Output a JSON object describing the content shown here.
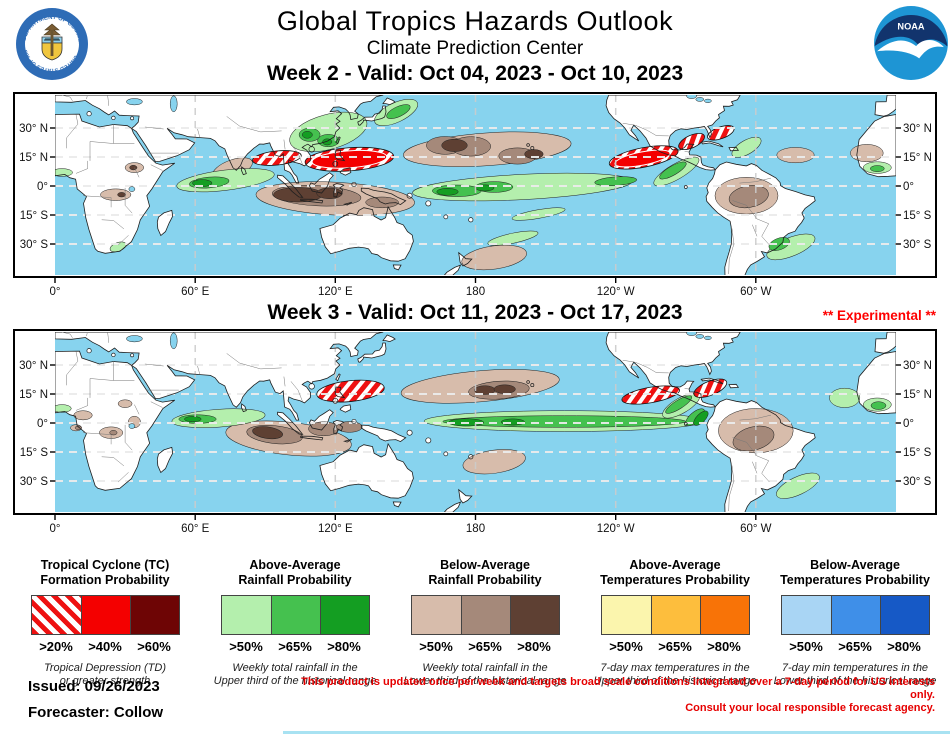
{
  "header": {
    "title": "Global Tropics Hazards Outlook",
    "subtitle": "Climate Prediction Center",
    "noaa_logo_text": "NOAA",
    "doc_seal_top_text": "DEPARTMENT OF COMMERCE",
    "doc_seal_bottom_text": "UNITED STATES OF AMERICA"
  },
  "maps": [
    {
      "id": "week2",
      "heading": "Week 2 - Valid: Oct 04, 2023 - Oct 10, 2023",
      "experimental": "",
      "lat_labels": [
        "30° N",
        "15° N",
        "0°",
        "15° S",
        "30° S"
      ],
      "lon_labels": [
        "0°",
        "60° E",
        "120° E",
        "180",
        "120° W",
        "60° W"
      ],
      "hazards": [
        {
          "type": "TC formation >40%",
          "area": "Western North Pacific / Philippine Sea"
        },
        {
          "type": "TC formation >20%",
          "area": "Bay of Bengal across Indochina"
        },
        {
          "type": "TC formation >40%",
          "area": "Eastern Pacific south of Mexico"
        },
        {
          "type": "TC formation >20%",
          "area": "Gulf of Mexico / NW Caribbean"
        },
        {
          "type": "TC formation >20%",
          "area": "Atlantic near Florida and Bahamas"
        },
        {
          "type": "Above-average rainfall",
          "area": "SE Asia to Japan; equatorial Indian Ocean; equatorial Pacific; Central America Pacific coast; SE Brazil"
        },
        {
          "type": "Below-average rainfall",
          "area": "Maritime Continent; central North Pacific; Amazon basin; tropical Atlantic; SE Pacific"
        }
      ]
    },
    {
      "id": "week3",
      "heading": "Week 3 - Valid: Oct 11, 2023 - Oct 17, 2023",
      "experimental": "** Experimental **",
      "lat_labels": [
        "30° N",
        "15° N",
        "0°",
        "15° S",
        "30° S"
      ],
      "lon_labels": [
        "0°",
        "60° E",
        "120° E",
        "180",
        "120° W",
        "60° W"
      ],
      "hazards": [
        {
          "type": "TC formation >20%",
          "area": "Philippine Sea / western North Pacific"
        },
        {
          "type": "TC formation >20%",
          "area": "Eastern Pacific south of Mexico"
        },
        {
          "type": "TC formation >20%",
          "area": "Western Caribbean / Gulf of Mexico"
        },
        {
          "type": "Above-average rainfall",
          "area": "Equatorial Indian Ocean; equatorial Pacific to Colombia; SE Brazil; West Africa"
        },
        {
          "type": "Below-average rainfall",
          "area": "Maritime Continent; central North Pacific; Amazon basin; SE Pacific; central Africa"
        }
      ]
    }
  ],
  "legends": [
    {
      "title1": "Tropical Cyclone (TC)",
      "title2": "Formation Probability",
      "labels": [
        ">20%",
        ">40%",
        ">60%"
      ],
      "desc1": "Tropical Depression (TD)",
      "desc2": "or greater strength",
      "swatches": [
        {
          "style": "hatch",
          "color": "#ee1111"
        },
        {
          "style": "solid",
          "color": "#f40000"
        },
        {
          "style": "solid",
          "color": "#6e0505"
        }
      ]
    },
    {
      "title1": "Above-Average",
      "title2": "Rainfall Probability",
      "labels": [
        ">50%",
        ">65%",
        ">80%"
      ],
      "desc1": "Weekly total rainfall in the",
      "desc2": "Upper third of the historical range",
      "swatches": [
        {
          "style": "solid",
          "color": "#b4efad"
        },
        {
          "style": "solid",
          "color": "#45c14f"
        },
        {
          "style": "solid",
          "color": "#149e22"
        }
      ]
    },
    {
      "title1": "Below-Average",
      "title2": "Rainfall Probability",
      "labels": [
        ">50%",
        ">65%",
        ">80%"
      ],
      "desc1": "Weekly total rainfall in the",
      "desc2": "Lower third of the historical range",
      "swatches": [
        {
          "style": "solid",
          "color": "#d7bcab"
        },
        {
          "style": "solid",
          "color": "#a5897a"
        },
        {
          "style": "solid",
          "color": "#5e4033"
        }
      ]
    },
    {
      "title1": "Above-Average",
      "title2": "Temperatures Probability",
      "labels": [
        ">50%",
        ">65%",
        ">80%"
      ],
      "desc1": "7-day max temperatures in the",
      "desc2": "Upper third of the historical range",
      "swatches": [
        {
          "style": "solid",
          "color": "#fbf5ad"
        },
        {
          "style": "solid",
          "color": "#fdbe3d"
        },
        {
          "style": "solid",
          "color": "#f87307"
        }
      ]
    },
    {
      "title1": "Below-Average",
      "title2": "Temperatures Probability",
      "labels": [
        ">50%",
        ">65%",
        ">80%"
      ],
      "desc1": "7-day min temperatures in the",
      "desc2": "Lower third of the historical range",
      "swatches": [
        {
          "style": "solid",
          "color": "#a9d5f4"
        },
        {
          "style": "solid",
          "color": "#3f8fe8"
        },
        {
          "style": "solid",
          "color": "#1659c6"
        }
      ]
    }
  ],
  "footer": {
    "issued": "Issued: 09/26/2023",
    "forecaster": "Forecaster: Collow",
    "disclaimer_line1": "This product is updated once per week and targets broad scale conditions integrated over a 7-day period for US interests only.",
    "disclaimer_line2": "Consult your local responsible forecast agency."
  },
  "colors": {
    "ocean": "#87d3ee",
    "land": "#ffffff",
    "coast": "#1f1f1f",
    "border": "#777777",
    "grid_h": "#ececec",
    "grid_v": "#cccccc",
    "rain_above": [
      "#b4efad",
      "#45c14f",
      "#149e22"
    ],
    "rain_below": [
      "#d7bcab",
      "#a5897a",
      "#5e4033"
    ],
    "tc_hatch_stripe": "#ee1111",
    "tc_solid": "#f40000",
    "tc_dark": "#6e0505",
    "experimental_red": "#ff0000",
    "disclaimer_red": "#e60000"
  }
}
